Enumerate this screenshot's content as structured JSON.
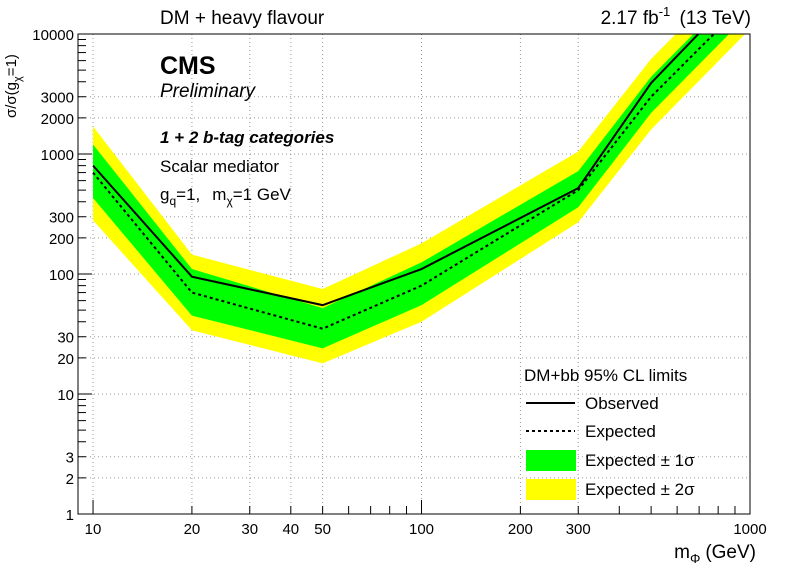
{
  "header": {
    "left": "DM + heavy flavour",
    "right_lumi": "2.17 fb",
    "right_lumi_exp": "-1",
    "right_energy": "(13 TeV)"
  },
  "labels": {
    "cms": "CMS",
    "preliminary": "Preliminary",
    "category": "1 + 2 b-tag categories",
    "mediator": "Scalar mediator",
    "coupling_gq": "g",
    "coupling_gq_sub": "q",
    "coupling_gq_val": "=1,",
    "coupling_m": "m",
    "coupling_m_sub": "χ",
    "coupling_m_val": "=1 GeV"
  },
  "axes": {
    "xlabel_main": "m",
    "xlabel_sub": "Φ",
    "xlabel_unit": "(GeV)",
    "ylabel_main": "σ/σ(g",
    "ylabel_sub": "χ",
    "ylabel_tail": "=1)"
  },
  "legend": {
    "title": "DM+bb   95% CL limits",
    "observed": "Observed",
    "expected": "Expected",
    "band1": "Expected ± 1σ",
    "band2": "Expected ± 2σ"
  },
  "colors": {
    "band1": "#00ff00",
    "band2": "#ffff00",
    "line": "#000000"
  },
  "chart_data": {
    "type": "line",
    "title": "DM + heavy flavour",
    "xlabel": "mΦ (GeV)",
    "ylabel": "σ/σ(gχ=1)",
    "xscale": "log",
    "yscale": "log",
    "xlim": [
      9,
      1000
    ],
    "ylim": [
      1,
      10000
    ],
    "x_ticks": [
      10,
      20,
      30,
      40,
      50,
      100,
      200,
      300,
      1000
    ],
    "y_ticks": [
      1,
      2,
      3,
      10,
      20,
      30,
      100,
      200,
      300,
      1000,
      2000,
      3000,
      10000
    ],
    "grid": true,
    "legend_position": "bottom-right",
    "x": [
      10,
      20,
      50,
      100,
      300,
      500,
      1000
    ],
    "series": [
      {
        "name": "Observed",
        "style": "solid",
        "values": [
          800,
          95,
          55,
          110,
          520,
          3900,
          28000
        ]
      },
      {
        "name": "Expected",
        "style": "dashed",
        "values": [
          700,
          70,
          35,
          80,
          500,
          3000,
          20000
        ]
      },
      {
        "name": "Expected ± 1σ",
        "band": true,
        "low": [
          430,
          45,
          24,
          55,
          360,
          2200,
          15000
        ],
        "high": [
          1200,
          110,
          52,
          125,
          720,
          4400,
          30000
        ]
      },
      {
        "name": "Expected ± 2σ",
        "band": true,
        "low": [
          280,
          34,
          18,
          40,
          270,
          1600,
          11000
        ],
        "high": [
          1700,
          145,
          75,
          180,
          1050,
          6200,
          42000
        ]
      }
    ]
  }
}
